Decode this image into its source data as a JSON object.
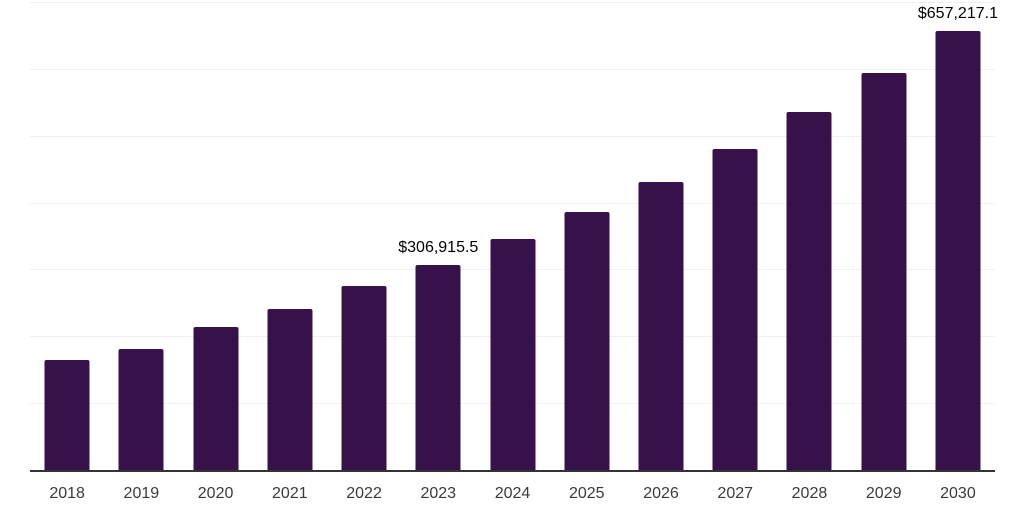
{
  "chart_data": {
    "type": "bar",
    "title": "",
    "xlabel": "",
    "ylabel": "",
    "categories": [
      "2018",
      "2019",
      "2020",
      "2021",
      "2022",
      "2023",
      "2024",
      "2025",
      "2026",
      "2027",
      "2028",
      "2029",
      "2030"
    ],
    "values": [
      164000,
      181100,
      213400,
      241300,
      274600,
      306915.5,
      345400,
      386200,
      431500,
      479900,
      536100,
      594400,
      657217.1
    ],
    "value_labels": {
      "2023": "$306,915.5",
      "2030": "$657,217.1"
    },
    "ylim": [
      0,
      700000
    ],
    "y_gridline_step": 100000,
    "grid": "horizontal",
    "legend": "none",
    "bar_color": "#36114a",
    "axis_color": "#333333",
    "gridline_color": "#f0f0f0",
    "value_label_color": "#000000",
    "tick_label_color": "#3a3a3a"
  }
}
